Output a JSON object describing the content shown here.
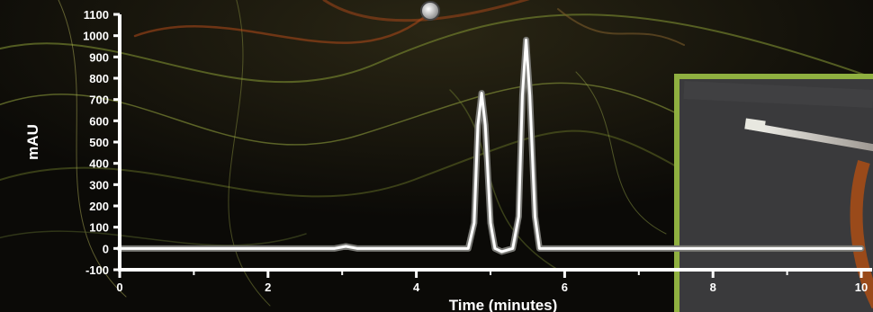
{
  "chart_data": {
    "type": "line",
    "xlabel": "Time (minutes)",
    "ylabel": "mAU",
    "xlim": [
      0,
      10
    ],
    "ylim": [
      -100,
      1100
    ],
    "x_ticks": [
      "0",
      "2",
      "4",
      "6",
      "8",
      "10"
    ],
    "y_ticks": [
      "1100",
      "1000",
      "900",
      "800",
      "700",
      "600",
      "500",
      "400",
      "300",
      "200",
      "100",
      "0",
      "-100"
    ],
    "grid": false,
    "series": [
      {
        "x": [
          0,
          2.9,
          3.05,
          3.2,
          4.7,
          4.78,
          4.83,
          4.88,
          4.93,
          5.0,
          5.06,
          5.15,
          5.3,
          5.38,
          5.43,
          5.48,
          5.53,
          5.6,
          5.66,
          5.8,
          10
        ],
        "y": [
          0,
          0,
          10,
          0,
          0,
          120,
          580,
          730,
          580,
          120,
          0,
          -15,
          0,
          150,
          720,
          980,
          720,
          150,
          0,
          0,
          0
        ]
      }
    ]
  },
  "background": {
    "base_color": "#0d0c08",
    "strand_colors": [
      "#8a9a3a",
      "#c0c060",
      "#7a5a2a",
      "#b04a1a"
    ],
    "inset_border_color": "#8fb040",
    "inset_fill_color": "#3a3a3c"
  }
}
